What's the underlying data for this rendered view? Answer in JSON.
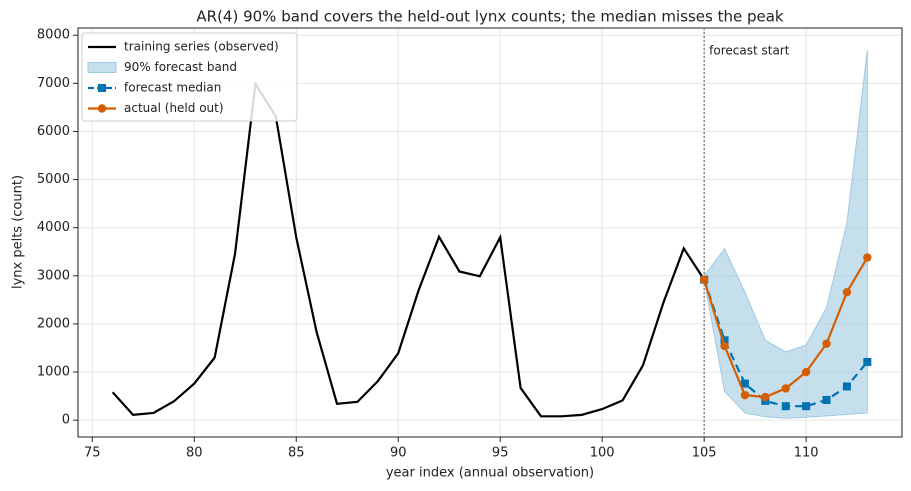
{
  "chart_data": {
    "type": "line",
    "title": "AR(4) 90% band covers the held-out lynx counts; the median misses the peak",
    "x_label": "year index (annual observation)",
    "y_label": "lynx pelts (count)",
    "xlim": [
      74.3,
      114.7
    ],
    "ylim": [
      -350,
      8150
    ],
    "xticks": [
      75,
      80,
      85,
      90,
      95,
      100,
      105,
      110
    ],
    "yticks": [
      0,
      1000,
      2000,
      3000,
      4000,
      5000,
      6000,
      7000,
      8000
    ],
    "grid": true,
    "legend": "upper left",
    "annotations": [
      {
        "text": "forecast start",
        "x": 105,
        "color": "#777777"
      }
    ],
    "series": [
      {
        "name": "training series (observed)",
        "color": "#000000",
        "style": "line",
        "x": [
          76,
          77,
          78,
          79,
          80,
          81,
          82,
          83,
          84,
          85,
          86,
          87,
          88,
          89,
          90,
          91,
          92,
          93,
          94,
          95,
          96,
          97,
          98,
          99,
          100,
          101,
          102,
          103,
          104,
          105
        ],
        "values": [
          580,
          110,
          150,
          390,
          760,
          1300,
          3460,
          6990,
          6310,
          3800,
          1830,
          340,
          380,
          810,
          1390,
          2700,
          3810,
          3090,
          2990,
          3800,
          670,
          80,
          80,
          110,
          230,
          410,
          1140,
          2440,
          3570,
          2920
        ]
      },
      {
        "name": "90% forecast band",
        "color": "#9ecae1",
        "style": "band",
        "x": [
          105,
          106,
          107,
          108,
          109,
          110,
          111,
          112,
          113
        ],
        "lower": [
          2920,
          600,
          150,
          70,
          40,
          60,
          90,
          120,
          150
        ],
        "upper": [
          3000,
          3560,
          2660,
          1660,
          1420,
          1560,
          2340,
          4100,
          7690
        ]
      },
      {
        "name": "forecast median",
        "color": "#0072b2",
        "style": "dashed",
        "marker": "square",
        "x": [
          105,
          106,
          107,
          108,
          109,
          110,
          111,
          112,
          113
        ],
        "values": [
          2920,
          1660,
          760,
          400,
          290,
          290,
          420,
          700,
          1210
        ]
      },
      {
        "name": "actual (held out)",
        "color": "#d55e00",
        "style": "line",
        "marker": "circle",
        "x": [
          105,
          106,
          107,
          108,
          109,
          110,
          111,
          112,
          113
        ],
        "values": [
          2920,
          1540,
          520,
          480,
          660,
          1000,
          1590,
          2660,
          3380
        ]
      }
    ]
  }
}
